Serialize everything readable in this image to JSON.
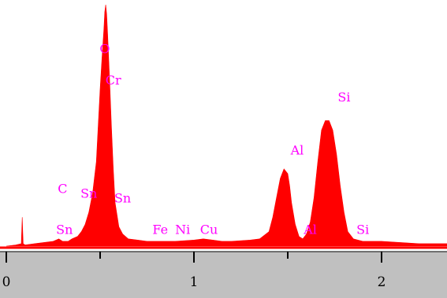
{
  "chart_data": {
    "type": "area",
    "title": "",
    "xlabel": "",
    "ylabel": "",
    "xlim": [
      0,
      2.4
    ],
    "ylim": [
      0,
      100
    ],
    "grid": false,
    "x_ticks": [
      {
        "value": 0,
        "label": "0"
      },
      {
        "value": 1,
        "label": "1"
      },
      {
        "value": 2,
        "label": "2"
      }
    ],
    "series": [
      {
        "color": "#ff0000",
        "x": [
          0,
          0.05,
          0.08,
          0.085,
          0.09,
          0.1,
          0.15,
          0.2,
          0.25,
          0.28,
          0.3,
          0.33,
          0.35,
          0.38,
          0.4,
          0.42,
          0.44,
          0.46,
          0.48,
          0.49,
          0.5,
          0.51,
          0.52,
          0.525,
          0.53,
          0.535,
          0.54,
          0.55,
          0.56,
          0.57,
          0.58,
          0.6,
          0.62,
          0.65,
          0.7,
          0.75,
          0.8,
          0.85,
          0.9,
          1.0,
          1.05,
          1.1,
          1.15,
          1.2,
          1.3,
          1.35,
          1.4,
          1.42,
          1.44,
          1.46,
          1.48,
          1.5,
          1.51,
          1.52,
          1.54,
          1.56,
          1.58,
          1.6,
          1.62,
          1.64,
          1.66,
          1.68,
          1.7,
          1.72,
          1.74,
          1.76,
          1.78,
          1.8,
          1.82,
          1.85,
          1.9,
          2.0,
          2.1,
          2.2,
          2.3,
          2.4
        ],
        "values": [
          0,
          0.5,
          1,
          12,
          1,
          0.5,
          1,
          1.5,
          2,
          3,
          2,
          2,
          3,
          4,
          6,
          9,
          14,
          22,
          35,
          50,
          65,
          78,
          90,
          97,
          100,
          96,
          88,
          70,
          50,
          32,
          18,
          8,
          5,
          3,
          2.5,
          2,
          2,
          2,
          2,
          2.5,
          3,
          2.5,
          2,
          2,
          2.5,
          3,
          6,
          12,
          20,
          28,
          32,
          30,
          25,
          18,
          9,
          4,
          3,
          5,
          10,
          20,
          35,
          48,
          52,
          52,
          48,
          38,
          25,
          14,
          6,
          3,
          2,
          2,
          1.5,
          1,
          1,
          1
        ]
      }
    ],
    "peak_labels": [
      {
        "text": "O",
        "x": 0.525,
        "y": 80
      },
      {
        "text": "Cr",
        "x": 0.57,
        "y": 67
      },
      {
        "text": "Si",
        "x": 1.8,
        "y": 60
      },
      {
        "text": "Al",
        "x": 1.55,
        "y": 38
      },
      {
        "text": "C",
        "x": 0.3,
        "y": 22
      },
      {
        "text": "Sn",
        "x": 0.44,
        "y": 20
      },
      {
        "text": "Sn",
        "x": 0.62,
        "y": 18
      },
      {
        "text": "Sn",
        "x": 0.31,
        "y": 5
      },
      {
        "text": "Fe",
        "x": 0.82,
        "y": 5
      },
      {
        "text": "Ni",
        "x": 0.94,
        "y": 5
      },
      {
        "text": "Cu",
        "x": 1.08,
        "y": 5
      },
      {
        "text": "Al",
        "x": 1.62,
        "y": 5
      },
      {
        "text": "Si",
        "x": 1.9,
        "y": 5
      }
    ],
    "label_color": "#ff00ff",
    "axis_bar_color": "#c0c0c0"
  }
}
